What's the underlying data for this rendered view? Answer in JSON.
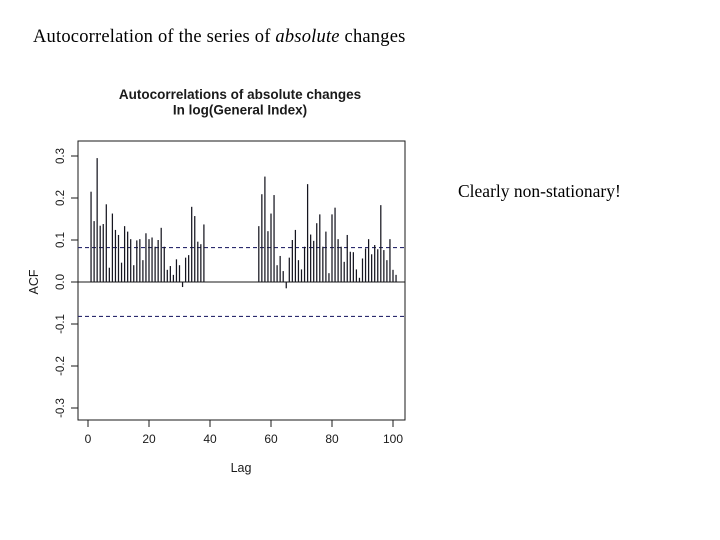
{
  "slide": {
    "title": {
      "prefix": "Autocorrelation of the series of ",
      "emphasis": "absolute",
      "suffix": " changes"
    },
    "annotation": "Clearly non-stationary!"
  },
  "chart_data": {
    "type": "bar",
    "title_line1": "Autocorrelations of absolute changes",
    "title_line2": "In log(General Index)",
    "xlabel": "Lag",
    "ylabel": "ACF",
    "x_tick_labels": [
      "0",
      "20",
      "40",
      "60",
      "80",
      "100"
    ],
    "x_tick_lags": [
      0,
      20,
      40,
      60,
      80,
      100
    ],
    "y_tick_labels": [
      "0.3",
      "0.2",
      "0.1",
      "0.0",
      "-0.1",
      "-0.2",
      "-0.3"
    ],
    "y_tick_values": [
      0.3,
      0.2,
      0.1,
      0.0,
      -0.1,
      -0.2,
      -0.3
    ],
    "ylim": [
      -0.33,
      0.335
    ],
    "xlim": [
      0,
      103
    ],
    "confidence_bound": 0.082,
    "grid": false,
    "legend": "none",
    "lag_start": 1,
    "values": [
      0.215,
      0.145,
      0.295,
      0.134,
      0.138,
      0.185,
      0.034,
      0.163,
      0.124,
      0.112,
      0.046,
      0.133,
      0.12,
      0.102,
      0.04,
      0.099,
      0.102,
      0.052,
      0.116,
      0.102,
      0.106,
      0.084,
      0.1,
      0.129,
      0.084,
      0.029,
      0.038,
      0.017,
      0.054,
      0.04,
      -0.012,
      0.058,
      0.064,
      0.179,
      0.157,
      0.096,
      0.09,
      0.137,
      0,
      0,
      0,
      0,
      0,
      0,
      0,
      0,
      0,
      0,
      0,
      0,
      0,
      0,
      0,
      0,
      0,
      0.133,
      0.209,
      0.251,
      0.121,
      0.163,
      0.207,
      0.04,
      0.062,
      0.026,
      -0.015,
      0.058,
      0.1,
      0.124,
      0.052,
      0.03,
      0.084,
      0.233,
      0.113,
      0.098,
      0.14,
      0.161,
      0.084,
      0.12,
      0.021,
      0.161,
      0.177,
      0.102,
      0.084,
      0.048,
      0.112,
      0.072,
      0.071,
      0.03,
      0.01,
      0.056,
      0.08,
      0.102,
      0.066,
      0.088,
      0.078,
      0.183,
      0.076,
      0.052,
      0.102,
      0.029,
      0.017
    ],
    "colors": {
      "bar": "#15151f",
      "axis": "#1a1a1a",
      "confidence_dash": "#2b2b6e",
      "text": "#1a1a1a"
    }
  }
}
